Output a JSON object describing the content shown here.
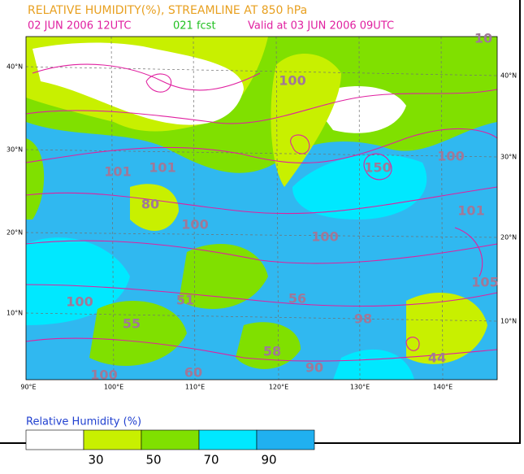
{
  "header": {
    "title": "RELATIVE HUMIDITY(%), STREAMLINE AT 850 hPa",
    "init": "02 JUN 2006 12UTC",
    "fcst": "021 fcst",
    "valid": "Valid at 03 JUN 2006 09UTC"
  },
  "lat_labels_left": [
    "40°N",
    "30°N",
    "20°N",
    "10°N"
  ],
  "lat_labels_right": [
    "40°N",
    "30°N",
    "20°N",
    "10°N"
  ],
  "lon_labels": [
    "90°E",
    "100°E",
    "110°E",
    "120°E",
    "130°E",
    "140°E"
  ],
  "contour_labels": [
    "10",
    "100",
    "101",
    "101",
    "80",
    "100",
    "100",
    "150",
    "100",
    "101",
    "105",
    "51",
    "56",
    "98",
    "100",
    "55",
    "58",
    "44",
    "90",
    "60",
    "100"
  ],
  "legend": {
    "title": "Relative Humidity (%)",
    "colors": [
      "#ffffff",
      "#c8f000",
      "#80e000",
      "#00e8ff",
      "#20b0f0"
    ],
    "labels": [
      "30",
      "50",
      "70",
      "90"
    ]
  }
}
